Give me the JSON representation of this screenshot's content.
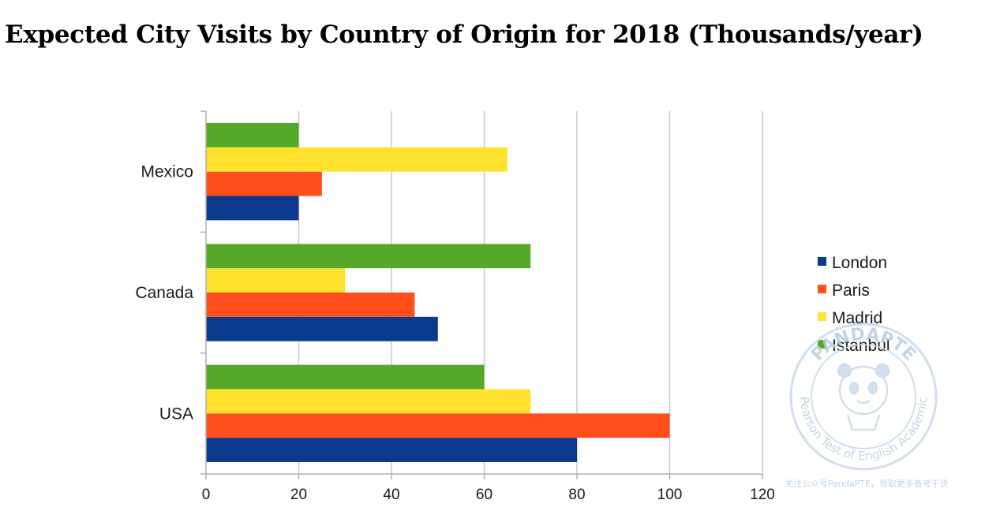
{
  "chart_data": {
    "type": "bar",
    "orientation": "horizontal",
    "title": "Expected City Visits by Country of Origin for 2018 (Thousands/year)",
    "categories": [
      "Mexico",
      "Canada",
      "USA"
    ],
    "series": [
      {
        "name": "London",
        "color": "#0b3a8c",
        "values": [
          20,
          50,
          80
        ]
      },
      {
        "name": "Paris",
        "color": "#ff4d1c",
        "values": [
          25,
          45,
          100
        ]
      },
      {
        "name": "Madrid",
        "color": "#ffe12e",
        "values": [
          65,
          30,
          70
        ]
      },
      {
        "name": "Istanbul",
        "color": "#56a828",
        "values": [
          20,
          70,
          60
        ]
      }
    ],
    "xlim": [
      0,
      120
    ],
    "xticks": [
      0,
      20,
      40,
      60,
      80,
      100,
      120
    ],
    "grid": true,
    "legend": "right"
  },
  "watermark": {
    "brand": "PANDAPTE",
    "ring_text": "Pearson Test of English Academic",
    "caption": "关注公众号PandaPTE，领取更多备考干货"
  }
}
